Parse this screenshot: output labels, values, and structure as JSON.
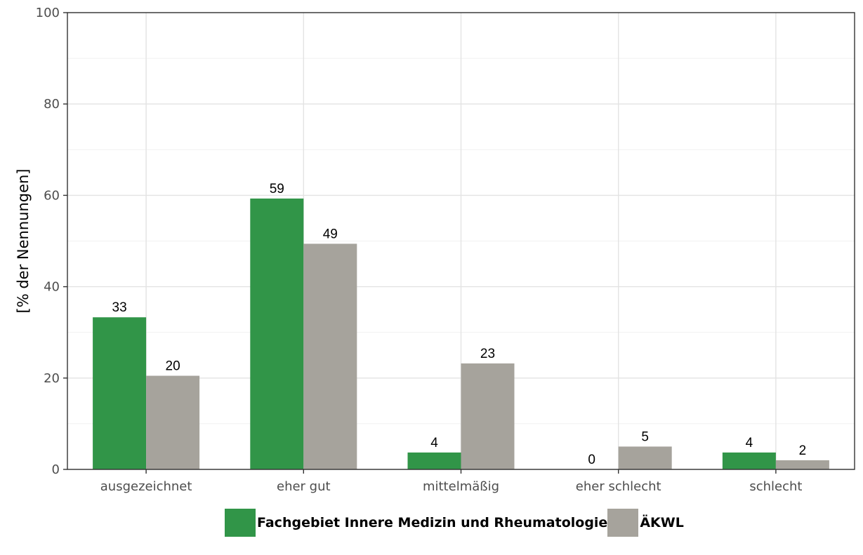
{
  "chart_data": {
    "type": "bar",
    "categories": [
      "ausgezeichnet",
      "eher gut",
      "mittelmäßig",
      "eher schlecht",
      "schlecht"
    ],
    "series": [
      {
        "name": "Fachgebiet Innere Medizin und Rheumatologie",
        "color": "#319548",
        "values": [
          33.3,
          59.3,
          3.7,
          0,
          3.7
        ],
        "labels": [
          "33",
          "59",
          "4",
          "0",
          "4"
        ]
      },
      {
        "name": "ÄKWL",
        "color": "#a6a39c",
        "values": [
          20.5,
          49.4,
          23.2,
          5.0,
          2.0
        ],
        "labels": [
          "20",
          "49",
          "23",
          "5",
          "2"
        ]
      }
    ],
    "ylabel": "[% der Nennungen]",
    "xlabel": "",
    "ylim": [
      0,
      100
    ],
    "yticks": [
      "0",
      "20",
      "40",
      "60",
      "80",
      "100"
    ],
    "grid": true,
    "legend_position": "bottom"
  }
}
